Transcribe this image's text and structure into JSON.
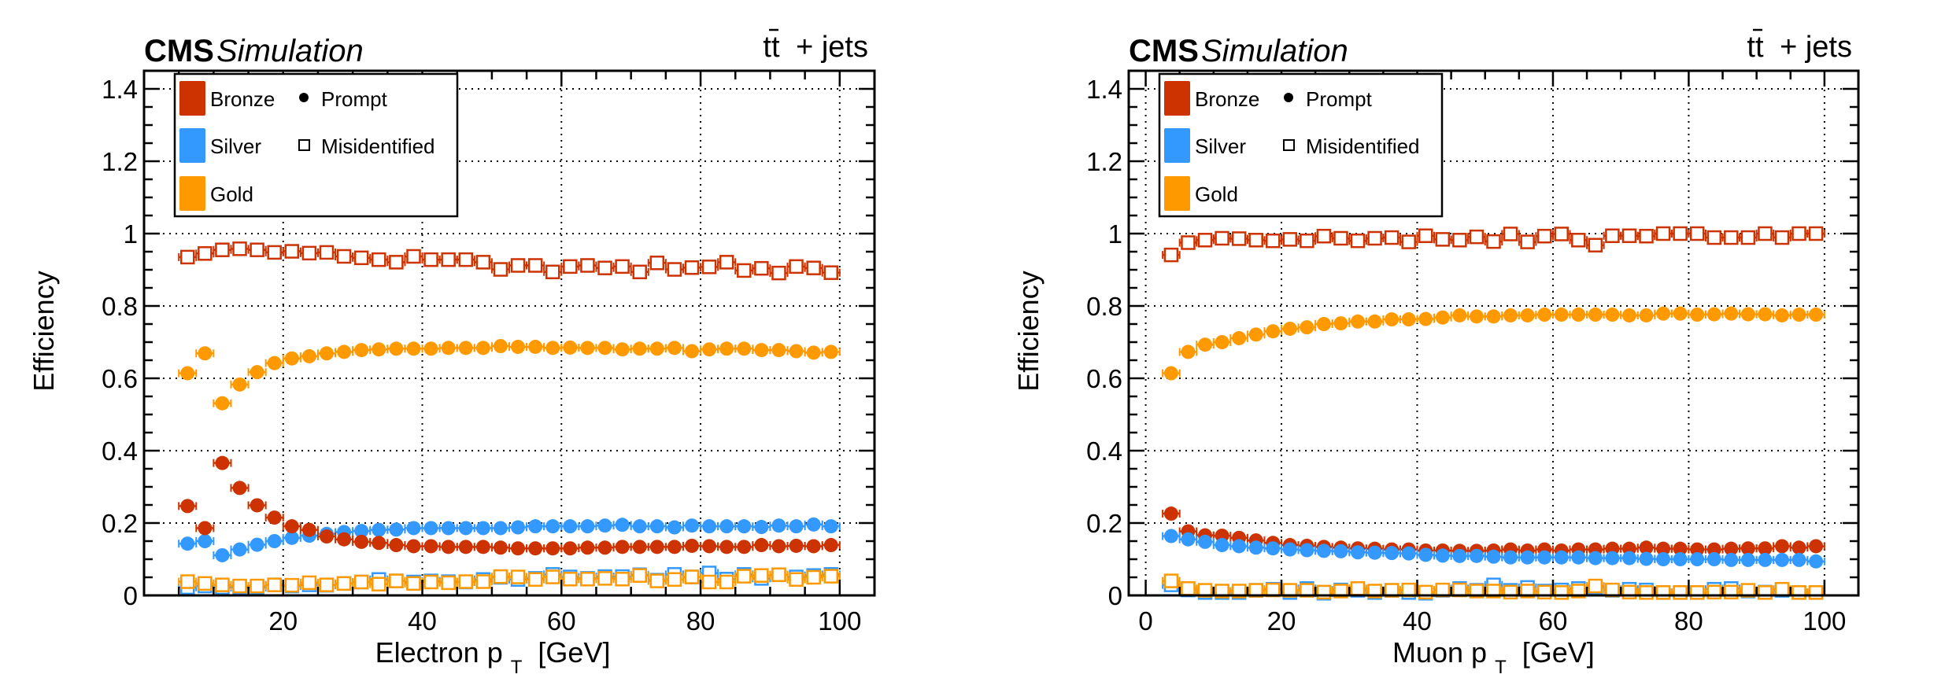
{
  "figure": {
    "colors": {
      "Bronze": "#CC3300",
      "Silver": "#3399FF",
      "Gold": "#FF9900"
    }
  },
  "chart_data": [
    {
      "type": "scatter",
      "experiment_label": "CMS",
      "status_label": "Simulation",
      "process_label_main": "tt",
      "process_label_bar": "t̄",
      "process_label_suffix": "+ jets",
      "process_label": "tt̄ + jets",
      "xlabel_main": "Electron p",
      "xlabel_sub": "T",
      "xlabel_unit": "[GeV]",
      "xlabel": "Electron p_T [GeV]",
      "ylabel": "Efficiency",
      "xlim": [
        0,
        105
      ],
      "ylim": [
        0,
        1.45
      ],
      "xticks": [
        20,
        40,
        60,
        80,
        100
      ],
      "xtick_labels": [
        "20",
        "40",
        "60",
        "80",
        "100"
      ],
      "yticks": [
        0,
        0.2,
        0.4,
        0.6,
        0.8,
        1,
        1.2,
        1.4
      ],
      "ytick_labels": [
        "0",
        "0.2",
        "0.4",
        "0.6",
        "0.8",
        "1",
        "1.2",
        "1.4"
      ],
      "grid": true,
      "legend_position": "top-left",
      "legend": {
        "categories": [
          "Bronze",
          "Silver",
          "Gold"
        ],
        "markers": [
          {
            "label": "Prompt",
            "marker": "filled-circle"
          },
          {
            "label": "Misidentified",
            "marker": "open-square"
          }
        ]
      },
      "x": [
        6.25,
        8.75,
        11.25,
        13.75,
        16.25,
        18.75,
        21.25,
        23.75,
        26.25,
        28.75,
        31.25,
        33.75,
        36.25,
        38.75,
        41.25,
        43.75,
        46.25,
        48.75,
        51.25,
        53.75,
        56.25,
        58.75,
        61.25,
        63.75,
        66.25,
        68.75,
        71.25,
        73.75,
        76.25,
        78.75,
        81.25,
        83.75,
        86.25,
        88.75,
        91.25,
        93.75,
        96.25,
        98.75
      ],
      "series": [
        {
          "name": "Bronze Misidentified",
          "category": "Bronze",
          "marker": "open-square",
          "values": [
            0.935,
            0.945,
            0.955,
            0.958,
            0.955,
            0.948,
            0.951,
            0.946,
            0.948,
            0.937,
            0.933,
            0.928,
            0.921,
            0.937,
            0.928,
            0.928,
            0.928,
            0.921,
            0.901,
            0.912,
            0.912,
            0.894,
            0.909,
            0.912,
            0.905,
            0.909,
            0.894,
            0.919,
            0.901,
            0.906,
            0.908,
            0.921,
            0.898,
            0.904,
            0.891,
            0.909,
            0.905,
            0.892
          ]
        },
        {
          "name": "Gold Prompt",
          "category": "Gold",
          "marker": "filled-circle",
          "values": [
            0.614,
            0.669,
            0.531,
            0.583,
            0.617,
            0.642,
            0.655,
            0.661,
            0.669,
            0.673,
            0.678,
            0.68,
            0.682,
            0.682,
            0.682,
            0.684,
            0.684,
            0.684,
            0.689,
            0.687,
            0.687,
            0.684,
            0.685,
            0.684,
            0.684,
            0.68,
            0.682,
            0.682,
            0.684,
            0.675,
            0.68,
            0.682,
            0.682,
            0.678,
            0.678,
            0.675,
            0.671,
            0.673
          ]
        },
        {
          "name": "Silver Prompt",
          "category": "Silver",
          "marker": "filled-circle",
          "values": [
            0.143,
            0.15,
            0.111,
            0.127,
            0.14,
            0.15,
            0.159,
            0.165,
            0.17,
            0.175,
            0.178,
            0.181,
            0.182,
            0.186,
            0.186,
            0.186,
            0.186,
            0.186,
            0.186,
            0.188,
            0.191,
            0.191,
            0.191,
            0.191,
            0.193,
            0.195,
            0.191,
            0.191,
            0.188,
            0.193,
            0.191,
            0.191,
            0.191,
            0.189,
            0.193,
            0.191,
            0.196,
            0.191
          ]
        },
        {
          "name": "Bronze Prompt",
          "category": "Bronze",
          "marker": "filled-circle",
          "values": [
            0.247,
            0.186,
            0.366,
            0.297,
            0.249,
            0.215,
            0.191,
            0.181,
            0.163,
            0.155,
            0.148,
            0.145,
            0.139,
            0.136,
            0.136,
            0.134,
            0.134,
            0.134,
            0.132,
            0.13,
            0.13,
            0.13,
            0.13,
            0.132,
            0.132,
            0.134,
            0.134,
            0.134,
            0.134,
            0.137,
            0.136,
            0.134,
            0.134,
            0.139,
            0.136,
            0.137,
            0.136,
            0.139
          ]
        },
        {
          "name": "Silver Misidentified",
          "category": "Silver",
          "marker": "open-square",
          "values": [
            0.022,
            0.026,
            0.022,
            0.022,
            0.022,
            0.029,
            0.026,
            0.029,
            0.028,
            0.033,
            0.037,
            0.044,
            0.04,
            0.037,
            0.04,
            0.038,
            0.037,
            0.044,
            0.05,
            0.044,
            0.047,
            0.058,
            0.051,
            0.047,
            0.052,
            0.052,
            0.057,
            0.042,
            0.058,
            0.051,
            0.062,
            0.045,
            0.058,
            0.047,
            0.057,
            0.051,
            0.055,
            0.058
          ]
        },
        {
          "name": "Gold Misidentified",
          "category": "Gold",
          "marker": "open-square",
          "values": [
            0.038,
            0.033,
            0.029,
            0.026,
            0.026,
            0.029,
            0.028,
            0.035,
            0.029,
            0.033,
            0.037,
            0.031,
            0.04,
            0.033,
            0.037,
            0.035,
            0.038,
            0.038,
            0.052,
            0.051,
            0.044,
            0.051,
            0.045,
            0.045,
            0.047,
            0.045,
            0.055,
            0.04,
            0.044,
            0.051,
            0.037,
            0.037,
            0.053,
            0.055,
            0.057,
            0.044,
            0.05,
            0.053
          ]
        }
      ]
    },
    {
      "type": "scatter",
      "experiment_label": "CMS",
      "status_label": "Simulation",
      "process_label_main": "tt",
      "process_label_bar": "t̄",
      "process_label_suffix": "+ jets",
      "process_label": "tt̄ + jets",
      "xlabel_main": "Muon p",
      "xlabel_sub": "T",
      "xlabel_unit": "[GeV]",
      "xlabel": "Muon p_T [GeV]",
      "ylabel": "Efficiency",
      "xlim": [
        -2.5,
        105
      ],
      "ylim": [
        0,
        1.45
      ],
      "xticks": [
        0,
        20,
        40,
        60,
        80,
        100
      ],
      "xtick_labels": [
        "0",
        "20",
        "40",
        "60",
        "80",
        "100"
      ],
      "yticks": [
        0,
        0.2,
        0.4,
        0.6,
        0.8,
        1,
        1.2,
        1.4
      ],
      "ytick_labels": [
        "0",
        "0.2",
        "0.4",
        "0.6",
        "0.8",
        "1",
        "1.2",
        "1.4"
      ],
      "grid": true,
      "legend_position": "top-left",
      "legend": {
        "categories": [
          "Bronze",
          "Silver",
          "Gold"
        ],
        "markers": [
          {
            "label": "Prompt",
            "marker": "filled-circle"
          },
          {
            "label": "Misidentified",
            "marker": "open-square"
          }
        ]
      },
      "x": [
        3.75,
        6.25,
        8.75,
        11.25,
        13.75,
        16.25,
        18.75,
        21.25,
        23.75,
        26.25,
        28.75,
        31.25,
        33.75,
        36.25,
        38.75,
        41.25,
        43.75,
        46.25,
        48.75,
        51.25,
        53.75,
        56.25,
        58.75,
        61.25,
        63.75,
        66.25,
        68.75,
        71.25,
        73.75,
        76.25,
        78.75,
        81.25,
        83.75,
        86.25,
        88.75,
        91.25,
        93.75,
        96.25,
        98.75
      ],
      "series": [
        {
          "name": "Bronze Misidentified",
          "category": "Bronze",
          "marker": "open-square",
          "values": [
            0.941,
            0.975,
            0.982,
            0.987,
            0.986,
            0.982,
            0.98,
            0.984,
            0.98,
            0.993,
            0.987,
            0.98,
            0.987,
            0.989,
            0.977,
            0.994,
            0.984,
            0.982,
            0.991,
            0.978,
            0.999,
            0.977,
            0.993,
            0.999,
            0.982,
            0.968,
            0.994,
            0.994,
            0.993,
            1.0,
            1.0,
            1.0,
            0.989,
            0.989,
            0.989,
            1.0,
            0.989,
            1.0,
            1.0
          ]
        },
        {
          "name": "Gold Prompt",
          "category": "Gold",
          "marker": "filled-circle",
          "values": [
            0.614,
            0.673,
            0.693,
            0.7,
            0.711,
            0.721,
            0.73,
            0.737,
            0.741,
            0.75,
            0.752,
            0.757,
            0.757,
            0.763,
            0.763,
            0.764,
            0.768,
            0.774,
            0.771,
            0.771,
            0.774,
            0.774,
            0.776,
            0.776,
            0.776,
            0.776,
            0.776,
            0.774,
            0.774,
            0.779,
            0.779,
            0.776,
            0.777,
            0.779,
            0.777,
            0.777,
            0.774,
            0.776,
            0.776
          ]
        },
        {
          "name": "Bronze Prompt",
          "category": "Bronze",
          "marker": "filled-circle",
          "values": [
            0.226,
            0.177,
            0.166,
            0.165,
            0.159,
            0.152,
            0.145,
            0.139,
            0.137,
            0.134,
            0.132,
            0.13,
            0.129,
            0.127,
            0.127,
            0.124,
            0.124,
            0.123,
            0.123,
            0.124,
            0.127,
            0.124,
            0.127,
            0.124,
            0.127,
            0.127,
            0.129,
            0.129,
            0.132,
            0.129,
            0.129,
            0.127,
            0.127,
            0.129,
            0.13,
            0.13,
            0.136,
            0.132,
            0.136
          ]
        },
        {
          "name": "Silver Prompt",
          "category": "Silver",
          "marker": "filled-circle",
          "values": [
            0.164,
            0.155,
            0.148,
            0.139,
            0.136,
            0.132,
            0.13,
            0.127,
            0.125,
            0.123,
            0.122,
            0.119,
            0.118,
            0.117,
            0.116,
            0.112,
            0.11,
            0.109,
            0.109,
            0.107,
            0.105,
            0.105,
            0.105,
            0.105,
            0.105,
            0.103,
            0.103,
            0.103,
            0.101,
            0.1,
            0.1,
            0.1,
            0.1,
            0.098,
            0.098,
            0.098,
            0.098,
            0.098,
            0.094
          ]
        },
        {
          "name": "Silver Misidentified",
          "category": "Silver",
          "marker": "open-square",
          "values": [
            0.029,
            0.015,
            0.008,
            0.008,
            0.008,
            0.014,
            0.017,
            0.008,
            0.019,
            0.006,
            0.015,
            0.014,
            0.008,
            0.014,
            0.008,
            0.006,
            0.014,
            0.019,
            0.014,
            0.029,
            0.014,
            0.022,
            0.012,
            0.015,
            0.019,
            0.022,
            0.014,
            0.017,
            0.015,
            0.008,
            0.008,
            0.008,
            0.017,
            0.019,
            0.012,
            0.009,
            0.014,
            0.008,
            0.008
          ]
        },
        {
          "name": "Gold Misidentified",
          "category": "Gold",
          "marker": "open-square",
          "values": [
            0.04,
            0.019,
            0.014,
            0.012,
            0.012,
            0.014,
            0.015,
            0.014,
            0.014,
            0.009,
            0.012,
            0.019,
            0.012,
            0.014,
            0.015,
            0.009,
            0.015,
            0.015,
            0.012,
            0.012,
            0.009,
            0.012,
            0.009,
            0.008,
            0.012,
            0.026,
            0.015,
            0.009,
            0.008,
            0.008,
            0.008,
            0.008,
            0.009,
            0.009,
            0.014,
            0.008,
            0.017,
            0.008,
            0.008
          ]
        }
      ]
    }
  ]
}
